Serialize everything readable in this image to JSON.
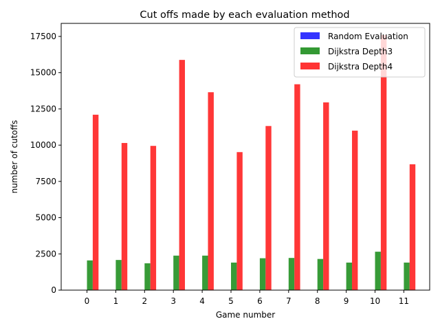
{
  "chart_data": {
    "type": "bar",
    "title": "Cut offs made by each evaluation method",
    "xlabel": "Game number",
    "ylabel": "number of cutoffs",
    "categories": [
      "0",
      "1",
      "2",
      "3",
      "4",
      "5",
      "6",
      "7",
      "8",
      "9",
      "10",
      "11"
    ],
    "series": [
      {
        "name": "Random Evaluation",
        "color": "#3333ff",
        "values": [
          0,
          0,
          0,
          0,
          0,
          0,
          0,
          0,
          0,
          0,
          0,
          0
        ]
      },
      {
        "name": "Dijkstra Depth3",
        "color": "#339933",
        "values": [
          2050,
          2080,
          1850,
          2380,
          2380,
          1900,
          2200,
          2220,
          2150,
          1900,
          2650,
          1900
        ]
      },
      {
        "name": "Dijkstra Depth4",
        "color": "#ff3333",
        "values": [
          12100,
          10150,
          9950,
          15880,
          13650,
          9520,
          11320,
          14200,
          12950,
          11000,
          17600,
          8680
        ]
      }
    ],
    "ylim": [
      0,
      18400
    ],
    "yticks": [
      0,
      2500,
      5000,
      7500,
      10000,
      12500,
      15000,
      17500
    ],
    "legend_position": "top-right",
    "grid": false
  }
}
